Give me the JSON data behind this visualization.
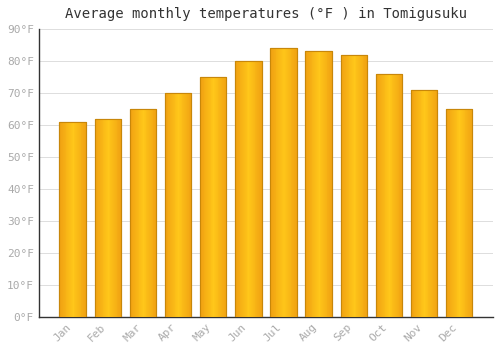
{
  "title": "Average monthly temperatures (°F ) in Tomigusuku",
  "months": [
    "Jan",
    "Feb",
    "Mar",
    "Apr",
    "May",
    "Jun",
    "Jul",
    "Aug",
    "Sep",
    "Oct",
    "Nov",
    "Dec"
  ],
  "values": [
    61,
    62,
    65,
    70,
    75,
    80,
    84,
    83,
    82,
    76,
    71,
    65
  ],
  "bar_color_center": "#FFBE00",
  "bar_color_edge": "#F5A000",
  "bar_edge_color": "#C8870A",
  "background_color": "#FFFFFF",
  "grid_color": "#DDDDDD",
  "ylim": [
    0,
    90
  ],
  "yticks": [
    0,
    10,
    20,
    30,
    40,
    50,
    60,
    70,
    80,
    90
  ],
  "title_fontsize": 10,
  "tick_fontsize": 8,
  "tick_color": "#AAAAAA",
  "bar_width": 0.75
}
